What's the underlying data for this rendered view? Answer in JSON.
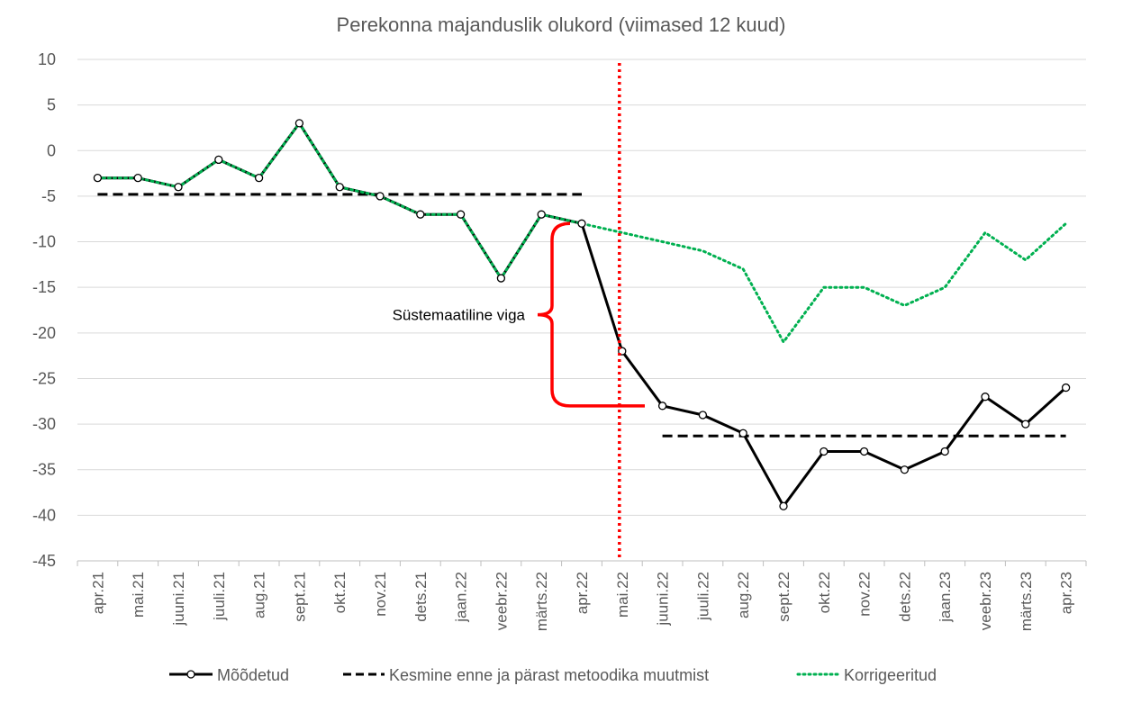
{
  "chart_data": {
    "type": "line",
    "title": "Perekonna majanduslik olukord (viimased 12 kuud)",
    "categories": [
      "apr.21",
      "mai.21",
      "juuni.21",
      "juuli.21",
      "aug.21",
      "sept.21",
      "okt.21",
      "nov.21",
      "dets.21",
      "jaan.22",
      "veebr.22",
      "märts.22",
      "apr.22",
      "mai.22",
      "juuni.22",
      "juuli.22",
      "aug.22",
      "sept.22",
      "okt.22",
      "nov.22",
      "dets.22",
      "jaan.23",
      "veebr.23",
      "märts.23",
      "apr.23"
    ],
    "yticks": [
      10,
      5,
      0,
      -5,
      -10,
      -15,
      -20,
      -25,
      -30,
      -35,
      -40,
      -45
    ],
    "ytick_labels": [
      "10",
      "5",
      "0",
      "-5",
      "-10",
      "-15",
      "-20",
      "-25",
      "-30",
      "-35",
      "-40",
      "-45"
    ],
    "ylim": [
      -45,
      10
    ],
    "grid": true,
    "legend_position": "bottom",
    "series": [
      {
        "name": "Mõõdetud",
        "color": "#000000",
        "style": "solid-markers",
        "values": [
          -3,
          -3,
          -4,
          -1,
          -3,
          3,
          -4,
          -5,
          -7,
          -7,
          -14,
          -7,
          -8,
          -22,
          -28,
          -29,
          -31,
          -39,
          -33,
          -33,
          -35,
          -33,
          -27,
          -30,
          -26
        ]
      },
      {
        "name": "Kesmine enne ja pärast metoodika muutmist",
        "color": "#000000",
        "style": "dashed",
        "segments": [
          {
            "from": "apr.21",
            "to": "apr.22",
            "value": -4.8
          },
          {
            "from": "juuni.22",
            "to": "apr.23",
            "value": -31.3
          }
        ]
      },
      {
        "name": "Korrigeeritud",
        "color": "#00b050",
        "style": "dotted",
        "values": [
          -3,
          -3,
          -4,
          -1,
          -3,
          3,
          -4,
          -5,
          -7,
          -7,
          -14,
          -7,
          -8,
          -9,
          -10,
          -11,
          -13,
          -21,
          -15,
          -15,
          -17,
          -15,
          -9,
          -12,
          -8
        ]
      }
    ],
    "annotations": [
      {
        "text": "Süstemaatiline viga",
        "color": "#ff0000",
        "from_value": -8,
        "to_value": -28,
        "near": "apr.22"
      },
      {
        "type": "vertical-line",
        "at": "mai.22",
        "color": "#ff0000",
        "style": "dotted"
      }
    ]
  }
}
